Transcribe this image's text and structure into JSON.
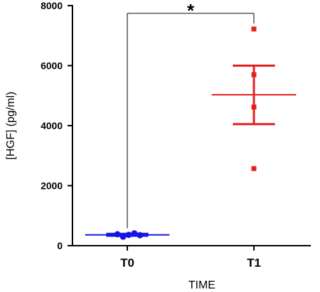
{
  "chart_data": {
    "type": "scatter",
    "xlabel": "TIME",
    "ylabel": "[HGF] (pg/ml)",
    "categories": [
      "T0",
      "T1"
    ],
    "ylim": [
      0,
      8000
    ],
    "yticks": [
      0,
      2000,
      4000,
      6000,
      8000
    ],
    "series": [
      {
        "category": "T0",
        "color": "#1515e0",
        "marker": "circle",
        "points": [
          380,
          300,
          360,
          410,
          350
        ],
        "mean": 360,
        "sem_low": 330,
        "sem_high": 395
      },
      {
        "category": "T1",
        "color": "#e41f1f",
        "marker": "square",
        "points": [
          7220,
          5700,
          4620,
          2570
        ],
        "mean": 5030,
        "sem_low": 4050,
        "sem_high": 6000
      }
    ],
    "significance": {
      "from": "T0",
      "to": "T1",
      "label": "*"
    }
  }
}
